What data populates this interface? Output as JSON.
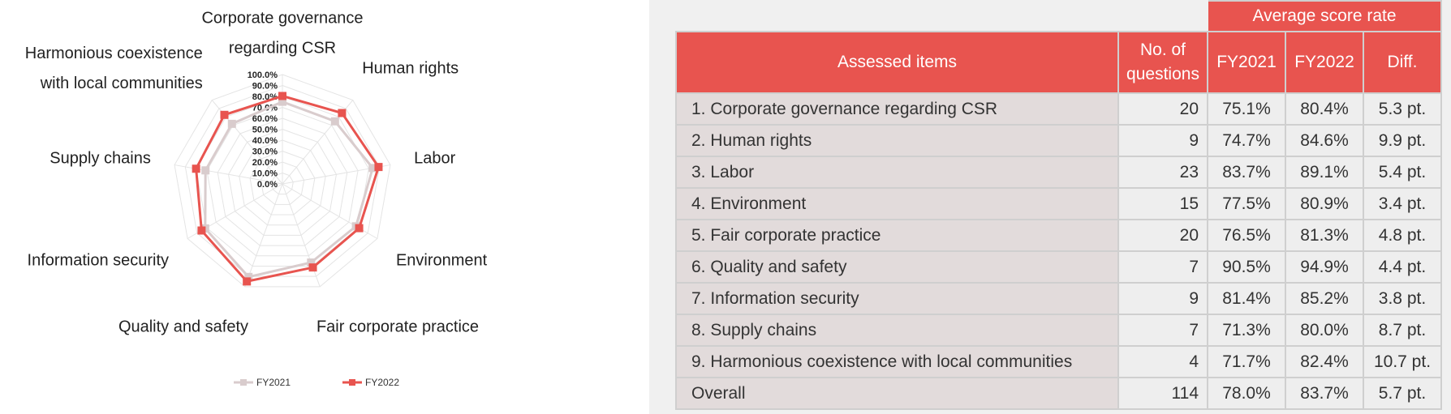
{
  "chart_data": {
    "type": "radar",
    "categories": [
      [
        "Corporate governance",
        "regarding CSR"
      ],
      [
        "Human rights"
      ],
      [
        "Labor"
      ],
      [
        "Environment"
      ],
      [
        "Fair corporate practice"
      ],
      [
        "Quality and safety"
      ],
      [
        "Information security"
      ],
      [
        "Supply chains"
      ],
      [
        "Harmonious coexistence",
        "with local communities"
      ]
    ],
    "series": [
      {
        "name": "FY2021",
        "values": [
          75.1,
          74.7,
          83.7,
          77.5,
          76.5,
          90.5,
          81.4,
          71.3,
          71.7
        ],
        "color": "#d9cccd"
      },
      {
        "name": "FY2022",
        "values": [
          80.4,
          84.6,
          89.1,
          80.9,
          81.3,
          94.9,
          85.2,
          80.0,
          82.4
        ],
        "color": "#e8544f"
      }
    ],
    "ticks": [
      "100.0%",
      "90.0%",
      "80.0%",
      "70.0%",
      "60.0%",
      "50.0%",
      "40.0%",
      "30.0%",
      "20.0%",
      "10.0%",
      "0.0%"
    ],
    "rlim": [
      0,
      100
    ],
    "grid": true,
    "legend_position": "bottom"
  },
  "table": {
    "group_header": "Average score rate",
    "headers": {
      "items": "Assessed items",
      "questions": "No. of questions",
      "fy2021": "FY2021",
      "fy2022": "FY2022",
      "diff": "Diff."
    },
    "rows": [
      {
        "item": "1. Corporate governance regarding CSR",
        "questions": "20",
        "fy2021": "75.1%",
        "fy2022": "80.4%",
        "diff": "5.3 pt."
      },
      {
        "item": "2. Human rights",
        "questions": "9",
        "fy2021": "74.7%",
        "fy2022": "84.6%",
        "diff": "9.9 pt."
      },
      {
        "item": "3. Labor",
        "questions": "23",
        "fy2021": "83.7%",
        "fy2022": "89.1%",
        "diff": "5.4 pt."
      },
      {
        "item": "4. Environment",
        "questions": "15",
        "fy2021": "77.5%",
        "fy2022": "80.9%",
        "diff": "3.4 pt."
      },
      {
        "item": "5. Fair corporate practice",
        "questions": "20",
        "fy2021": "76.5%",
        "fy2022": "81.3%",
        "diff": "4.8 pt."
      },
      {
        "item": "6. Quality and safety",
        "questions": "7",
        "fy2021": "90.5%",
        "fy2022": "94.9%",
        "diff": "4.4 pt."
      },
      {
        "item": "7. Information security",
        "questions": "9",
        "fy2021": "81.4%",
        "fy2022": "85.2%",
        "diff": "3.8 pt."
      },
      {
        "item": "8. Supply chains",
        "questions": "7",
        "fy2021": "71.3%",
        "fy2022": "80.0%",
        "diff": "8.7 pt."
      },
      {
        "item": "9. Harmonious coexistence with local communities",
        "questions": "4",
        "fy2021": "71.7%",
        "fy2022": "82.4%",
        "diff": "10.7 pt."
      },
      {
        "item": "Overall",
        "questions": "114",
        "fy2021": "78.0%",
        "fy2022": "83.7%",
        "diff": "5.7 pt."
      }
    ]
  }
}
